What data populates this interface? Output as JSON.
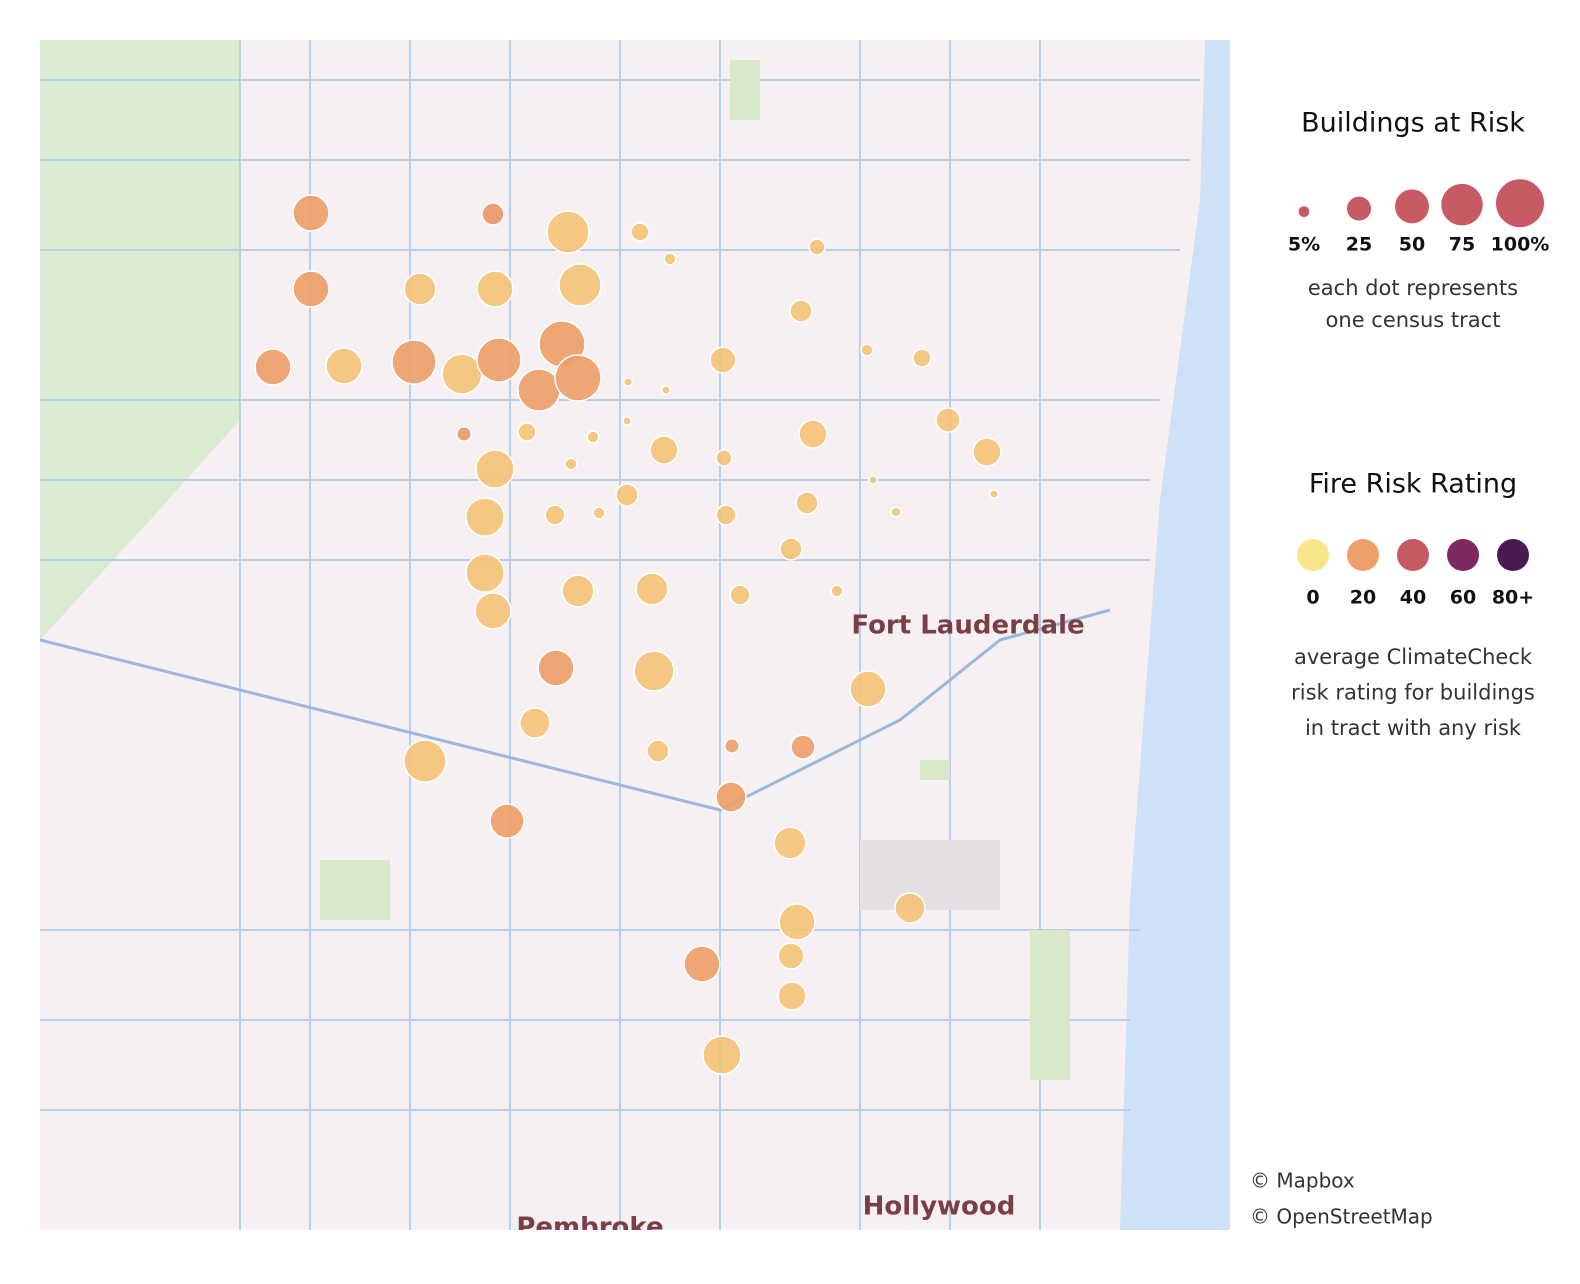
{
  "map": {
    "places": [
      "Fort Lauderdale",
      "Hollywood",
      "Pembroke"
    ],
    "attribution": [
      "© Mapbox",
      "© OpenStreetMap"
    ]
  },
  "legend": {
    "size": {
      "title": "Buildings at Risk",
      "color": "#c85a64",
      "items": [
        {
          "value": 5,
          "label": "5%"
        },
        {
          "value": 25,
          "label": "25"
        },
        {
          "value": 50,
          "label": "50"
        },
        {
          "value": 75,
          "label": "75"
        },
        {
          "value": 100,
          "label": "100%"
        }
      ],
      "note": [
        "each dot represents",
        "one census tract"
      ]
    },
    "color": {
      "title": "Fire Risk Rating",
      "items": [
        {
          "value": 0,
          "label": "0",
          "color": "#f9e68a"
        },
        {
          "value": 20,
          "label": "20",
          "color": "#eda06a"
        },
        {
          "value": 40,
          "label": "40",
          "color": "#c85a64"
        },
        {
          "value": 60,
          "label": "60",
          "color": "#7e2960"
        },
        {
          "value": 80,
          "label": "80+",
          "color": "#4a1a57"
        }
      ],
      "note": [
        "average ClimateCheck",
        "risk rating for buildings",
        "in tract with any risk"
      ]
    }
  },
  "tracts": [
    {
      "pct": 56,
      "rating": 20
    },
    {
      "pct": 21,
      "rating": 22
    },
    {
      "pct": 77,
      "rating": 10
    },
    {
      "pct": 14,
      "rating": 10
    },
    {
      "pct": 6,
      "rating": 10
    },
    {
      "pct": 11,
      "rating": 10
    },
    {
      "pct": 56,
      "rating": 20
    },
    {
      "pct": 44,
      "rating": 10
    },
    {
      "pct": 56,
      "rating": 10
    },
    {
      "pct": 77,
      "rating": 10
    },
    {
      "pct": 21,
      "rating": 10
    },
    {
      "pct": 56,
      "rating": 20
    },
    {
      "pct": 56,
      "rating": 10
    },
    {
      "pct": 84,
      "rating": 20
    },
    {
      "pct": 69,
      "rating": 10
    },
    {
      "pct": 84,
      "rating": 20
    },
    {
      "pct": 92,
      "rating": 20
    },
    {
      "pct": 77,
      "rating": 20
    },
    {
      "pct": 92,
      "rating": 20
    },
    {
      "pct": 29,
      "rating": 10
    },
    {
      "pct": 6,
      "rating": 10
    },
    {
      "pct": 14,
      "rating": 10
    },
    {
      "pct": 3,
      "rating": 10
    },
    {
      "pct": 3,
      "rating": 10
    },
    {
      "pct": 9,
      "rating": 22
    },
    {
      "pct": 14,
      "rating": 10
    },
    {
      "pct": 6,
      "rating": 10
    },
    {
      "pct": 3,
      "rating": 10
    },
    {
      "pct": 34,
      "rating": 10
    },
    {
      "pct": 34,
      "rating": 10
    },
    {
      "pct": 25,
      "rating": 10
    },
    {
      "pct": 34,
      "rating": 10
    },
    {
      "pct": 63,
      "rating": 10
    },
    {
      "pct": 6,
      "rating": 10
    },
    {
      "pct": 11,
      "rating": 10
    },
    {
      "pct": 21,
      "rating": 10
    },
    {
      "pct": 63,
      "rating": 10
    },
    {
      "pct": 17,
      "rating": 10
    },
    {
      "pct": 6,
      "rating": 10
    },
    {
      "pct": 17,
      "rating": 10
    },
    {
      "pct": 21,
      "rating": 10
    },
    {
      "pct": 3,
      "rating": 10
    },
    {
      "pct": 3,
      "rating": 10
    },
    {
      "pct": 4,
      "rating": 10
    },
    {
      "pct": 21,
      "rating": 10
    },
    {
      "pct": 63,
      "rating": 10
    },
    {
      "pct": 56,
      "rating": 10
    },
    {
      "pct": 44,
      "rating": 10
    },
    {
      "pct": 44,
      "rating": 10
    },
    {
      "pct": 17,
      "rating": 10
    },
    {
      "pct": 6,
      "rating": 10
    },
    {
      "pct": 56,
      "rating": 20
    },
    {
      "pct": 69,
      "rating": 10
    },
    {
      "pct": 56,
      "rating": 10
    },
    {
      "pct": 39,
      "rating": 10
    },
    {
      "pct": 21,
      "rating": 10
    },
    {
      "pct": 9,
      "rating": 20
    },
    {
      "pct": 25,
      "rating": 20
    },
    {
      "pct": 77,
      "rating": 10
    },
    {
      "pct": 39,
      "rating": 20
    },
    {
      "pct": 50,
      "rating": 20
    },
    {
      "pct": 44,
      "rating": 10
    },
    {
      "pct": 39,
      "rating": 10
    },
    {
      "pct": 56,
      "rating": 10
    },
    {
      "pct": 29,
      "rating": 10
    },
    {
      "pct": 56,
      "rating": 20
    },
    {
      "pct": 34,
      "rating": 10
    },
    {
      "pct": 63,
      "rating": 10
    }
  ]
}
